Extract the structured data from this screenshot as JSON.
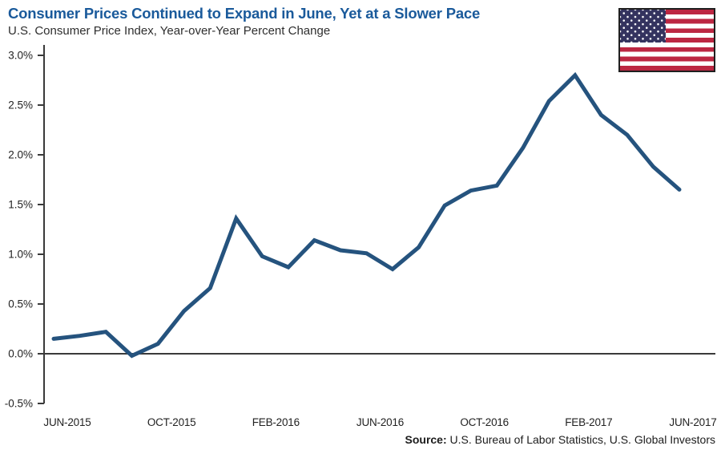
{
  "header": {
    "title": "Consumer Prices Continued to Expand in June, Yet at a Slower Pace",
    "subtitle": "U.S. Consumer Price Index, Year-over-Year Percent Change"
  },
  "source": {
    "label": "Source:",
    "text": "U.S. Bureau of Labor Statistics, U.S. Global Investors"
  },
  "colors": {
    "title_blue": "#1a5a9b",
    "line_blue": "#25537e",
    "axis_gray": "#3a3a3a",
    "label_dark": "#222222",
    "flag_red": "#bc2742",
    "flag_blue": "#34335f",
    "flag_border": "#1f1f1f"
  },
  "chart_data": {
    "type": "line",
    "title": "Consumer Prices Continued to Expand in June, Yet at a Slower Pace",
    "subtitle": "U.S. Consumer Price Index, Year-over-Year Percent Change",
    "x": [
      "Jun-2015",
      "Jul-2015",
      "Aug-2015",
      "Sep-2015",
      "Oct-2015",
      "Nov-2015",
      "Dec-2015",
      "Jan-2016",
      "Feb-2016",
      "Mar-2016",
      "Apr-2016",
      "May-2016",
      "Jun-2016",
      "Jul-2016",
      "Aug-2016",
      "Sep-2016",
      "Oct-2016",
      "Nov-2016",
      "Dec-2016",
      "Jan-2017",
      "Feb-2017",
      "Mar-2017",
      "Apr-2017",
      "May-2017",
      "Jun-2017"
    ],
    "values": [
      0.15,
      0.18,
      0.22,
      -0.02,
      0.1,
      0.43,
      0.66,
      1.36,
      0.98,
      0.87,
      1.14,
      1.04,
      1.01,
      0.85,
      1.07,
      1.49,
      1.64,
      1.69,
      2.07,
      2.54,
      2.8,
      2.4,
      2.2,
      1.88,
      1.65
    ],
    "series_name": "U.S. Consumer Price Index, Year-over-Year Percent Change",
    "x_tick_labels": [
      "JUN-2015",
      "OCT-2015",
      "FEB-2016",
      "JUN-2016",
      "OCT-2016",
      "FEB-2017",
      "JUN-2017"
    ],
    "x_tick_every_n_months": 4,
    "y_tick_labels": [
      "3.0%",
      "2.5%",
      "2.0%",
      "1.5%",
      "1.0%",
      "0.5%",
      "0.0%",
      "-0.5%"
    ],
    "y_ticks": [
      3.0,
      2.5,
      2.0,
      1.5,
      1.0,
      0.5,
      0.0,
      -0.5
    ],
    "ylim": [
      -0.5,
      3.0
    ],
    "grid": false,
    "zero_baseline": true,
    "legend": "none"
  }
}
